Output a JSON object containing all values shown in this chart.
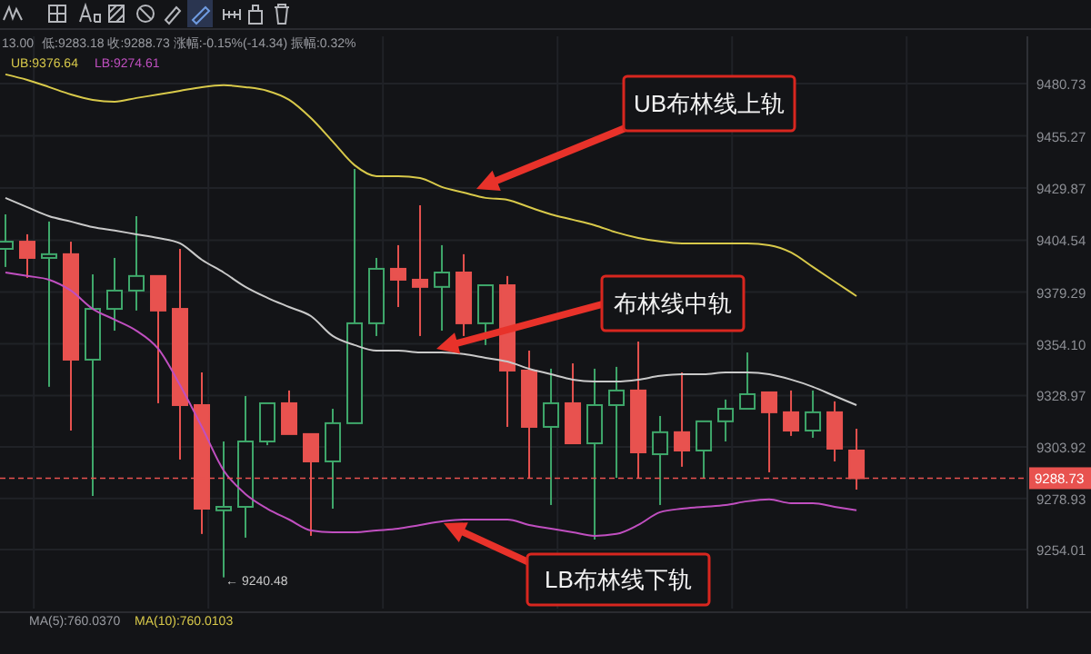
{
  "chart_data": {
    "type": "candlestick",
    "categories": [
      null,
      null,
      null,
      null,
      null,
      null,
      null,
      null,
      null,
      null,
      null,
      null,
      null,
      null,
      null,
      null,
      null,
      null,
      null,
      null,
      null,
      null,
      null,
      null,
      null,
      null,
      null,
      null,
      null,
      null,
      null,
      null,
      null,
      null,
      null,
      null,
      null,
      null,
      null,
      null
    ],
    "ohlc": [
      [
        9400.3,
        9417.1,
        9391.5,
        9403.8
      ],
      [
        9403.8,
        9407.4,
        9386.2,
        9395.9
      ],
      [
        9395.9,
        9413.6,
        9333.2,
        9397.7
      ],
      [
        9397.7,
        9403.8,
        9311.9,
        9346.4
      ],
      [
        9346.4,
        9387.9,
        9280.1,
        9371.1
      ],
      [
        9371.1,
        9395.9,
        9360.5,
        9380.0
      ],
      [
        9380.0,
        9416.2,
        9370.3,
        9387.1
      ],
      [
        9387.1,
        9387.1,
        9325.2,
        9370.3
      ],
      [
        9371.1,
        9400.3,
        9297.8,
        9324.3
      ],
      [
        9324.3,
        9340.2,
        9261.6,
        9273.9
      ],
      [
        9273.1,
        9306.6,
        9240.48,
        9274.8
      ],
      [
        9274.8,
        9328.7,
        9259.8,
        9306.6
      ],
      [
        9306.6,
        9325.2,
        9304.8,
        9325.2
      ],
      [
        9325.2,
        9331.4,
        9310.2,
        9310.2
      ],
      [
        9310.2,
        9310.2,
        9260.7,
        9296.9
      ],
      [
        9296.9,
        9322.5,
        9273.9,
        9315.5
      ],
      [
        9315.5,
        9439.2,
        9315.5,
        9364.1
      ],
      [
        9364.1,
        9395.9,
        9357.9,
        9390.6
      ],
      [
        9390.6,
        9402.1,
        9372.0,
        9385.3
      ],
      [
        9385.3,
        9421.5,
        9357.9,
        9381.8
      ],
      [
        9381.8,
        9402.1,
        9360.5,
        9388.8
      ],
      [
        9388.8,
        9397.7,
        9357.9,
        9364.1
      ],
      [
        9364.1,
        9382.6,
        9353.5,
        9382.6
      ],
      [
        9382.6,
        9387.1,
        9313.7,
        9341.1
      ],
      [
        9341.1,
        9350.8,
        9288.9,
        9313.7
      ],
      [
        9313.7,
        9342.0,
        9275.7,
        9325.2
      ],
      [
        9325.2,
        9344.6,
        9305.7,
        9305.7
      ],
      [
        9305.7,
        9342.0,
        9258.9,
        9324.3
      ],
      [
        9324.3,
        9342.9,
        9288.9,
        9331.4
      ],
      [
        9331.4,
        9355.2,
        9288.9,
        9301.3
      ],
      [
        9300.4,
        9319.0,
        9275.7,
        9311.1
      ],
      [
        9311.1,
        9340.2,
        9294.3,
        9302.2
      ],
      [
        9302.2,
        9316.4,
        9288.9,
        9316.4
      ],
      [
        9316.4,
        9327.0,
        9306.6,
        9322.5
      ],
      [
        9322.5,
        9349.9,
        9322.5,
        9329.6
      ],
      [
        9330.5,
        9330.5,
        9291.6,
        9320.8
      ],
      [
        9320.8,
        9331.4,
        9309.3,
        9311.9
      ],
      [
        9311.9,
        9331.4,
        9308.4,
        9320.8
      ],
      [
        9320.8,
        9326.1,
        9296.9,
        9303.1
      ],
      [
        9302.2,
        9312.8,
        9283.18,
        9288.73
      ]
    ],
    "colors": [
      "#3fa86b",
      "#e8524f",
      "#3fa86b",
      "#e8524f",
      "#3fa86b",
      "#3fa86b",
      "#3fa86b",
      "#e8524f",
      "#e8524f",
      "#e8524f",
      "#3fa86b",
      "#3fa86b",
      "#3fa86b",
      "#e8524f",
      "#e8524f",
      "#3fa86b",
      "#3fa86b",
      "#3fa86b",
      "#e8524f",
      "#e8524f",
      "#3fa86b",
      "#e8524f",
      "#3fa86b",
      "#e8524f",
      "#e8524f",
      "#3fa86b",
      "#e8524f",
      "#3fa86b",
      "#3fa86b",
      "#e8524f",
      "#3fa86b",
      "#e8524f",
      "#3fa86b",
      "#3fa86b",
      "#3fa86b",
      "#e8524f",
      "#e8524f",
      "#3fa86b",
      "#e8524f",
      "#e8524f"
    ],
    "series": [
      {
        "type": "line",
        "color": "#d8c94a",
        "values": [
          9485.2,
          9482.5,
          9479.0,
          9475.4,
          9472.8,
          9471.9,
          9473.7,
          9475.4,
          9477.2,
          9479.0,
          9479.9,
          9479.0,
          9477.2,
          9472.8,
          9463.9,
          9452.5,
          9441.0,
          9435.7,
          9435.7,
          9434.8,
          9430.4,
          9427.7,
          9425.1,
          9424.2,
          9420.6,
          9417.1,
          9414.5,
          9411.8,
          9408.3,
          9405.6,
          9403.9,
          9403.0,
          9403.0,
          9403.0,
          9403.0,
          9402.1,
          9398.6,
          9391.5,
          9384.4,
          9377.3
        ]
      },
      {
        "type": "line",
        "color": "#c9c9c9",
        "values": [
          9425.1,
          9420.6,
          9416.2,
          9413.6,
          9410.9,
          9409.2,
          9407.4,
          9405.6,
          9403.0,
          9395.0,
          9388.8,
          9381.8,
          9376.5,
          9372.0,
          9367.6,
          9357.9,
          9353.5,
          9350.8,
          9350.8,
          9349.9,
          9349.9,
          9349.1,
          9347.3,
          9345.5,
          9342.0,
          9339.3,
          9336.7,
          9335.8,
          9335.8,
          9336.7,
          9338.5,
          9339.3,
          9339.3,
          9340.2,
          9340.2,
          9339.3,
          9336.7,
          9333.2,
          9328.7,
          9324.3
        ]
      },
      {
        "type": "line",
        "color": "#c04fc0",
        "values": [
          9388.8,
          9387.1,
          9385.3,
          9380.0,
          9371.1,
          9365.9,
          9360.5,
          9351.7,
          9334.0,
          9313.7,
          9292.5,
          9281.0,
          9273.9,
          9268.6,
          9263.3,
          9262.4,
          9262.4,
          9263.3,
          9264.2,
          9266.0,
          9267.7,
          9268.6,
          9268.6,
          9268.6,
          9266.0,
          9264.2,
          9262.4,
          9260.7,
          9261.6,
          9266.0,
          9272.2,
          9273.9,
          9274.8,
          9275.7,
          9277.5,
          9278.4,
          9276.6,
          9276.6,
          9274.8,
          9273.1
        ]
      }
    ],
    "ylim": [
      9225.3,
      9503.7
    ],
    "yticks": [
      9480.73,
      9455.27,
      9429.87,
      9404.54,
      9379.29,
      {
        "value": 9354.1,
        "label": "9354.10"
      },
      9328.97,
      9303.92,
      9278.93,
      9254.01
    ],
    "tick_labels": "y",
    "grid": true,
    "ref_lines": [
      {
        "axis": "y",
        "value": 9288.73,
        "label": "9288.73",
        "color": "#e8524f",
        "line_style": "dashed"
      }
    ],
    "annotations": [
      "13.00",
      "低:9283.18 收:9288.73 涨幅:-0.15%(-14.34) 振幅:0.32%",
      "UB:9376.64",
      "LB:9274.61",
      "UB布林线上轨",
      "布林线中轨",
      "LB布林线下轨",
      "← 9240.48",
      "MA(5):760.0370",
      "MA(10):760.0103"
    ]
  }
}
